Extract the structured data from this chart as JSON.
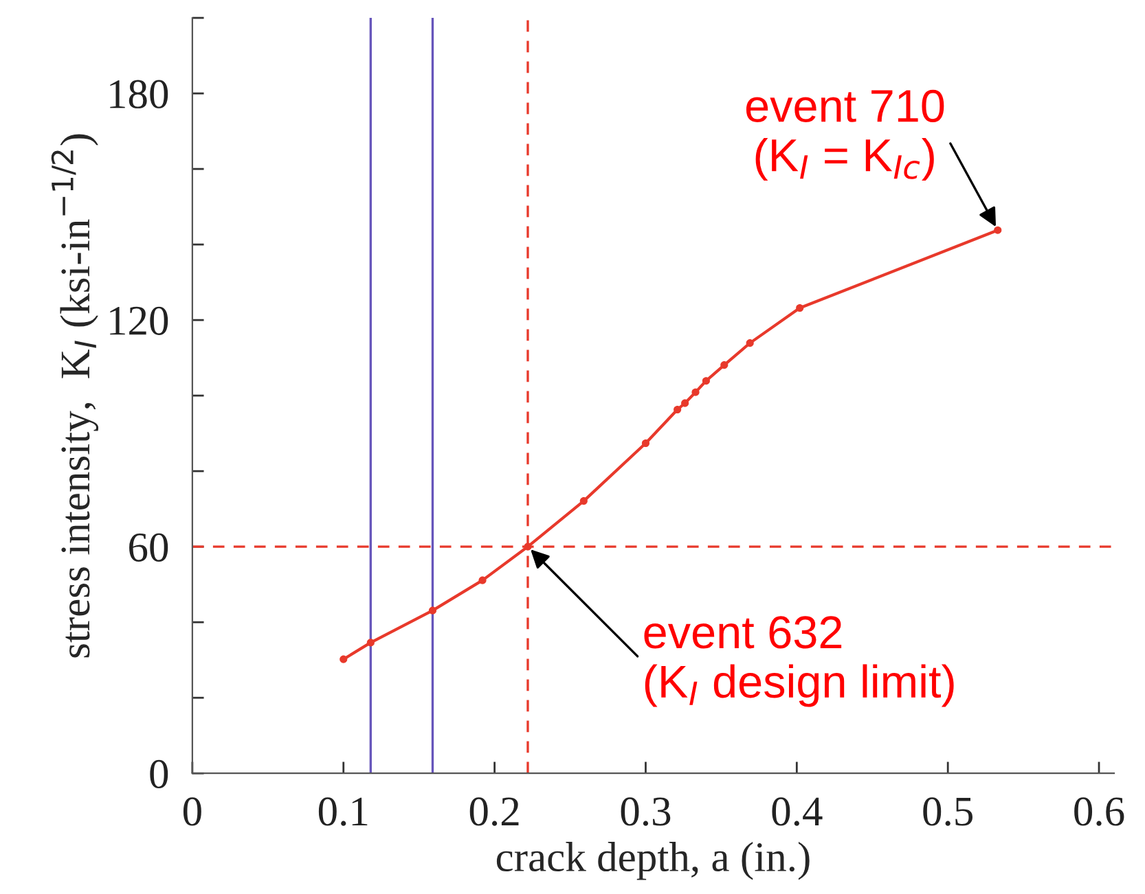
{
  "chart_data": {
    "type": "line",
    "xlabel": "crack depth, a (in.)",
    "ylabel": "stress intensity,  K$_{I}$ (ksi-in$^{−1/2}$)",
    "series": [
      {
        "color": "#e8392b",
        "marker": "circle",
        "x": [
          0.1,
          0.118,
          0.159,
          0.192,
          0.222,
          0.259,
          0.3,
          0.321,
          0.326,
          0.333,
          0.34,
          0.352,
          0.369,
          0.402,
          0.533
        ],
        "values": [
          30.2,
          34.6,
          43.1,
          51.1,
          60.0,
          72.1,
          87.4,
          96.3,
          98.0,
          100.9,
          103.9,
          108.1,
          113.9,
          123.2,
          143.8
        ]
      }
    ],
    "xlim": [
      0,
      0.61
    ],
    "xticks": [
      0,
      0.1,
      0.2,
      0.3,
      0.4,
      0.5,
      0.6
    ],
    "ylim": [
      0,
      200
    ],
    "yticks": [
      0,
      {
        "value": 20,
        "label": null
      },
      {
        "value": 40,
        "label": null
      },
      60,
      {
        "value": 80,
        "label": null
      },
      {
        "value": 100,
        "label": null
      },
      120,
      {
        "value": 140,
        "label": null
      },
      {
        "value": 160,
        "label": null
      },
      180,
      {
        "value": 200,
        "label": null
      }
    ],
    "ref_lines": [
      {
        "axis": "x",
        "value": 0.118,
        "color": "#6655bb",
        "line_style": "solid"
      },
      {
        "axis": "x",
        "value": 0.159,
        "color": "#6655bb",
        "line_style": "solid"
      },
      {
        "axis": "x",
        "value": 0.222,
        "color": "#e8392b",
        "line_style": "dashed"
      },
      {
        "axis": "y",
        "value": 60,
        "color": "#e8392b",
        "line_style": "dashed"
      }
    ],
    "annotations": [
      {
        "text": "event 710\n(K$_{I}$ = K$_{Ic}$)",
        "x": 0.533,
        "y": 143.8
      },
      {
        "text": "event 632\n(K$_{I}$ design limit)",
        "x": 0.222,
        "y": 60.0
      }
    ],
    "grid": false,
    "legend": false
  }
}
